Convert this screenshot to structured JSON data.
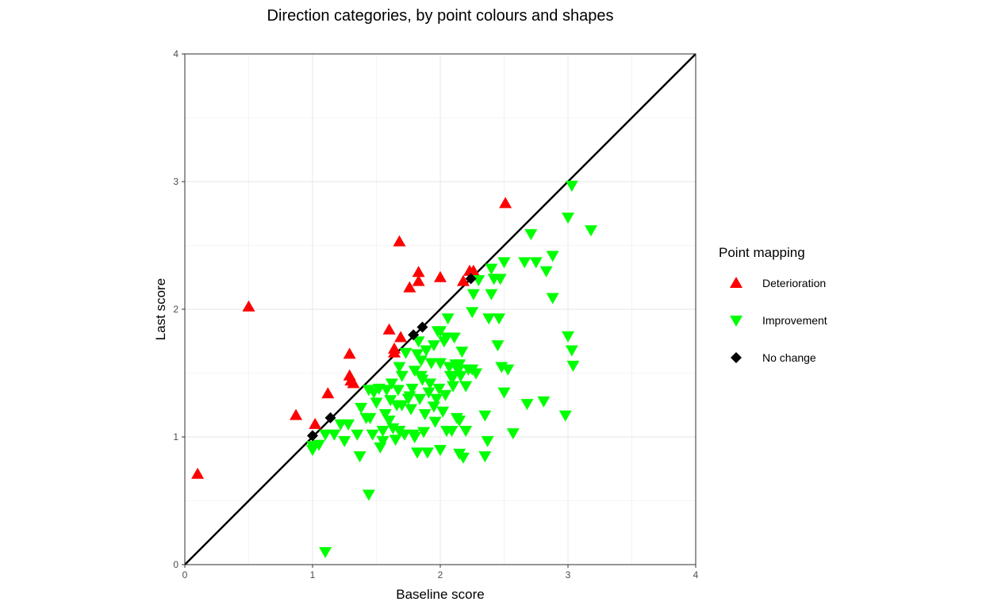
{
  "chart_data": {
    "type": "scatter",
    "title": "Direction categories, by point colours and shapes",
    "xlabel": "Baseline score",
    "ylabel": "Last score",
    "xlim": [
      0,
      4
    ],
    "ylim": [
      0,
      4
    ],
    "xticks": [
      "0",
      "1",
      "2",
      "3",
      "4"
    ],
    "yticks": [
      "0",
      "1",
      "2",
      "3",
      "4"
    ],
    "grid": true,
    "reference_line": "y = x",
    "legend": {
      "title": "Point mapping",
      "placement": "right"
    },
    "series": [
      {
        "name": "Deterioration",
        "color": "#ff0000",
        "shape": "triangle-up",
        "points": [
          [
            0.1,
            0.71
          ],
          [
            0.5,
            2.02
          ],
          [
            0.87,
            1.17
          ],
          [
            1.02,
            1.1
          ],
          [
            1.12,
            1.34
          ],
          [
            1.29,
            1.65
          ],
          [
            1.29,
            1.48
          ],
          [
            1.3,
            1.44
          ],
          [
            1.32,
            1.42
          ],
          [
            1.6,
            1.84
          ],
          [
            1.64,
            1.69
          ],
          [
            1.64,
            1.66
          ],
          [
            1.69,
            1.78
          ],
          [
            1.68,
            2.53
          ],
          [
            1.76,
            2.17
          ],
          [
            1.83,
            2.29
          ],
          [
            1.83,
            2.22
          ],
          [
            2.0,
            2.25
          ],
          [
            2.18,
            2.22
          ],
          [
            2.23,
            2.3
          ],
          [
            2.26,
            2.3
          ],
          [
            2.51,
            2.83
          ]
        ]
      },
      {
        "name": "Improvement",
        "color": "#00ff00",
        "shape": "triangle-down",
        "points": [
          [
            1.0,
            0.9
          ],
          [
            1.0,
            0.93
          ],
          [
            1.05,
            0.94
          ],
          [
            1.1,
            1.02
          ],
          [
            1.17,
            1.02
          ],
          [
            1.22,
            1.1
          ],
          [
            1.25,
            0.97
          ],
          [
            1.1,
            0.1
          ],
          [
            1.44,
            0.55
          ],
          [
            1.37,
            0.85
          ],
          [
            1.35,
            1.02
          ],
          [
            1.38,
            1.23
          ],
          [
            1.42,
            1.15
          ],
          [
            1.44,
            1.37
          ],
          [
            1.47,
            1.02
          ],
          [
            1.5,
            1.27
          ],
          [
            1.52,
            1.38
          ],
          [
            1.53,
            0.92
          ],
          [
            1.55,
            0.97
          ],
          [
            1.55,
            1.05
          ],
          [
            1.57,
            1.18
          ],
          [
            1.58,
            1.37
          ],
          [
            1.6,
            1.13
          ],
          [
            1.61,
            1.29
          ],
          [
            1.62,
            1.42
          ],
          [
            1.63,
            1.07
          ],
          [
            1.66,
            1.25
          ],
          [
            1.67,
            1.37
          ],
          [
            1.68,
            1.55
          ],
          [
            1.68,
            1.05
          ],
          [
            1.7,
            1.48
          ],
          [
            1.72,
            1.02
          ],
          [
            1.73,
            1.66
          ],
          [
            1.75,
            1.3
          ],
          [
            1.77,
            1.22
          ],
          [
            1.78,
            1.38
          ],
          [
            1.79,
            1.02
          ],
          [
            1.8,
            1.52
          ],
          [
            1.82,
            0.88
          ],
          [
            1.82,
            1.65
          ],
          [
            1.83,
            1.75
          ],
          [
            1.84,
            1.3
          ],
          [
            1.85,
            1.6
          ],
          [
            1.86,
            1.45
          ],
          [
            1.87,
            1.04
          ],
          [
            1.88,
            1.18
          ],
          [
            1.89,
            1.68
          ],
          [
            1.9,
            0.88
          ],
          [
            1.91,
            1.35
          ],
          [
            1.92,
            1.42
          ],
          [
            1.93,
            1.58
          ],
          [
            1.95,
            1.24
          ],
          [
            1.96,
            1.12
          ],
          [
            1.97,
            1.3
          ],
          [
            1.98,
            1.83
          ],
          [
            1.99,
            1.38
          ],
          [
            2.0,
            0.9
          ],
          [
            2.0,
            1.58
          ],
          [
            2.02,
            1.2
          ],
          [
            2.03,
            1.75
          ],
          [
            2.04,
            1.33
          ],
          [
            2.05,
            1.05
          ],
          [
            2.06,
            1.93
          ],
          [
            2.07,
            1.55
          ],
          [
            2.08,
            1.48
          ],
          [
            2.09,
            1.05
          ],
          [
            2.1,
            1.4
          ],
          [
            2.11,
            1.78
          ],
          [
            2.12,
            1.57
          ],
          [
            2.13,
            1.15
          ],
          [
            2.14,
            1.52
          ],
          [
            2.15,
            0.87
          ],
          [
            2.16,
            1.48
          ],
          [
            2.17,
            1.67
          ],
          [
            2.18,
            0.84
          ],
          [
            2.2,
            1.4
          ],
          [
            2.22,
            1.53
          ],
          [
            2.25,
            1.98
          ],
          [
            2.26,
            2.12
          ],
          [
            2.28,
            1.5
          ],
          [
            2.3,
            2.23
          ],
          [
            2.35,
            1.17
          ],
          [
            2.35,
            0.85
          ],
          [
            2.37,
            0.97
          ],
          [
            2.38,
            1.93
          ],
          [
            2.4,
            2.32
          ],
          [
            2.4,
            2.12
          ],
          [
            2.42,
            2.24
          ],
          [
            2.45,
            1.72
          ],
          [
            2.46,
            1.93
          ],
          [
            2.47,
            2.24
          ],
          [
            2.48,
            1.55
          ],
          [
            2.5,
            2.37
          ],
          [
            2.5,
            1.35
          ],
          [
            2.53,
            1.53
          ],
          [
            2.57,
            1.03
          ],
          [
            2.66,
            2.37
          ],
          [
            2.68,
            1.26
          ],
          [
            2.71,
            2.59
          ],
          [
            2.75,
            2.37
          ],
          [
            2.81,
            1.28
          ],
          [
            2.83,
            2.3
          ],
          [
            2.88,
            2.42
          ],
          [
            2.88,
            2.09
          ],
          [
            2.98,
            1.17
          ],
          [
            3.0,
            1.79
          ],
          [
            3.0,
            2.72
          ],
          [
            3.03,
            2.97
          ],
          [
            3.03,
            1.68
          ],
          [
            3.04,
            1.56
          ],
          [
            3.18,
            2.62
          ],
          [
            1.28,
            1.1
          ],
          [
            1.45,
            1.15
          ],
          [
            1.48,
            1.35
          ],
          [
            1.65,
            0.98
          ],
          [
            1.7,
            1.25
          ],
          [
            1.76,
            1.32
          ],
          [
            1.8,
            1.0
          ],
          [
            1.85,
            1.48
          ],
          [
            1.95,
            1.72
          ],
          [
            2.0,
            1.83
          ],
          [
            2.05,
            1.78
          ],
          [
            2.1,
            1.47
          ],
          [
            2.15,
            1.57
          ],
          [
            2.2,
            1.05
          ],
          [
            2.25,
            1.53
          ],
          [
            2.15,
            1.13
          ]
        ]
      },
      {
        "name": "No change",
        "color": "#000000",
        "shape": "diamond",
        "points": [
          [
            1.0,
            1.01
          ],
          [
            1.14,
            1.15
          ],
          [
            1.79,
            1.8
          ],
          [
            1.86,
            1.86
          ],
          [
            2.24,
            2.24
          ]
        ]
      }
    ]
  }
}
